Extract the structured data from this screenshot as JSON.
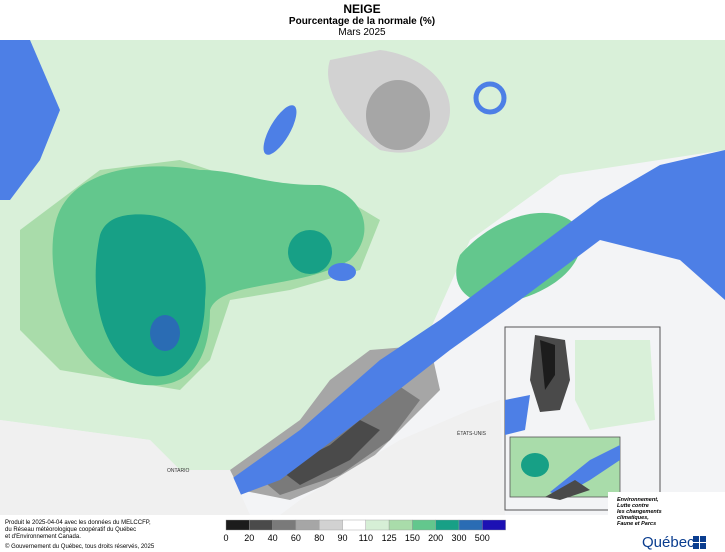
{
  "header": {
    "title": "NEIGE",
    "subtitle": "Pourcentage de la normale (%)",
    "period": "Mars 2025"
  },
  "map_labels": {
    "ontario": "ONTARIO",
    "usa": "ÉTATS-UNIS"
  },
  "legend": {
    "labels": [
      "0",
      "20",
      "40",
      "60",
      "80",
      "90",
      "110",
      "125",
      "150",
      "200",
      "300",
      "500"
    ],
    "colors": [
      "#1c1c1c",
      "#4a4a4a",
      "#7a7a7a",
      "#a6a6a6",
      "#d2d2d2",
      "#ffffff",
      "#d6efd6",
      "#a9dcaa",
      "#63c78d",
      "#17a086",
      "#2a6cb4",
      "#1c10b4"
    ]
  },
  "footer": {
    "lines": [
      "Produit le 2025-04-04 avec les données du MELCCFP,",
      "du Réseau météorologique coopératif du Québec",
      "et d'Environnement Canada."
    ],
    "copyright": "© Gouvernement du Québec, tous droits réservés, 2025"
  },
  "logo": {
    "lines": [
      "Environnement,",
      "Lutte contre",
      "les changements",
      "climatiques,",
      "Faune et Parcs"
    ],
    "name": "Québec"
  }
}
